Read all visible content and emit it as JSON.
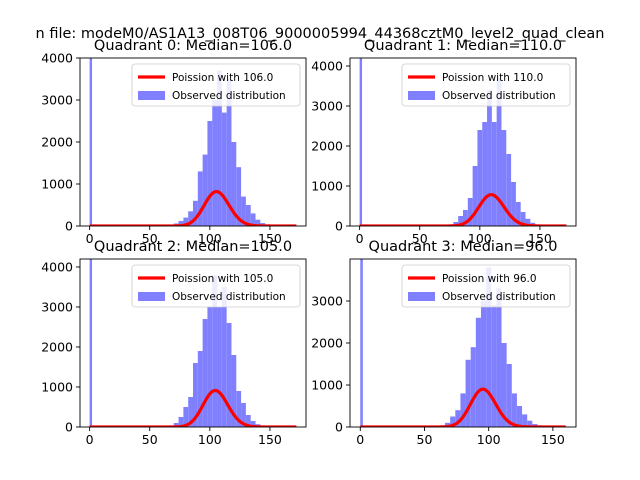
{
  "figure": {
    "suptitle": "n file: modeM0/AS1A13_008T06_9000005994_44368cztM0_level2_quad_clean"
  },
  "colors": {
    "poisson_line": "#ff0000",
    "observed_fill": "#8080ff",
    "axes": "#000000",
    "background": "#ffffff"
  },
  "chart_data": [
    {
      "type": "bar",
      "title": "Quadrant 0: Median=106.0",
      "xlim": [
        -8,
        180
      ],
      "ylim": [
        0,
        4000
      ],
      "xticks": [
        0,
        50,
        100,
        150
      ],
      "yticks": [
        0,
        1000,
        2000,
        3000,
        4000
      ],
      "legend_position": "top-right",
      "series": [
        {
          "name": "Poission with 106.0",
          "kind": "line",
          "lambda": 106.0,
          "x_range": [
            0,
            172
          ]
        },
        {
          "name": "Observed distribution",
          "kind": "histogram",
          "bin_width": 4,
          "bins": [
            {
              "x0": 0,
              "x1": 2,
              "count": 4000
            },
            {
              "x0": 70,
              "x1": 74,
              "count": 60
            },
            {
              "x0": 74,
              "x1": 78,
              "count": 120
            },
            {
              "x0": 78,
              "x1": 82,
              "count": 200
            },
            {
              "x0": 82,
              "x1": 86,
              "count": 350
            },
            {
              "x0": 86,
              "x1": 90,
              "count": 600
            },
            {
              "x0": 90,
              "x1": 94,
              "count": 1300
            },
            {
              "x0": 94,
              "x1": 98,
              "count": 1700
            },
            {
              "x0": 98,
              "x1": 102,
              "count": 2500
            },
            {
              "x0": 102,
              "x1": 106,
              "count": 3000
            },
            {
              "x0": 106,
              "x1": 110,
              "count": 3700
            },
            {
              "x0": 110,
              "x1": 114,
              "count": 2700
            },
            {
              "x0": 114,
              "x1": 118,
              "count": 3500
            },
            {
              "x0": 118,
              "x1": 122,
              "count": 2000
            },
            {
              "x0": 122,
              "x1": 126,
              "count": 1400
            },
            {
              "x0": 126,
              "x1": 130,
              "count": 700
            },
            {
              "x0": 130,
              "x1": 134,
              "count": 500
            },
            {
              "x0": 134,
              "x1": 138,
              "count": 300
            },
            {
              "x0": 138,
              "x1": 142,
              "count": 150
            },
            {
              "x0": 142,
              "x1": 146,
              "count": 70
            },
            {
              "x0": 146,
              "x1": 150,
              "count": 40
            }
          ]
        }
      ]
    },
    {
      "type": "bar",
      "title": "Quadrant 1: Median=110.0",
      "xlim": [
        -8,
        180
      ],
      "ylim": [
        0,
        4200
      ],
      "xticks": [
        0,
        50,
        100,
        150
      ],
      "yticks": [
        0,
        1000,
        2000,
        3000,
        4000
      ],
      "legend_position": "top-right",
      "series": [
        {
          "name": "Poission with 110.0",
          "kind": "line",
          "lambda": 110.0,
          "x_range": [
            0,
            172
          ]
        },
        {
          "name": "Observed distribution",
          "kind": "histogram",
          "bin_width": 4,
          "bins": [
            {
              "x0": 0,
              "x1": 2,
              "count": 4200
            },
            {
              "x0": 74,
              "x1": 78,
              "count": 40
            },
            {
              "x0": 78,
              "x1": 82,
              "count": 100
            },
            {
              "x0": 82,
              "x1": 86,
              "count": 250
            },
            {
              "x0": 86,
              "x1": 90,
              "count": 400
            },
            {
              "x0": 90,
              "x1": 94,
              "count": 700
            },
            {
              "x0": 94,
              "x1": 98,
              "count": 1500
            },
            {
              "x0": 98,
              "x1": 102,
              "count": 2400
            },
            {
              "x0": 102,
              "x1": 106,
              "count": 2600
            },
            {
              "x0": 106,
              "x1": 110,
              "count": 3400
            },
            {
              "x0": 110,
              "x1": 114,
              "count": 2600
            },
            {
              "x0": 114,
              "x1": 118,
              "count": 3700
            },
            {
              "x0": 118,
              "x1": 122,
              "count": 2400
            },
            {
              "x0": 122,
              "x1": 126,
              "count": 1800
            },
            {
              "x0": 126,
              "x1": 130,
              "count": 1100
            },
            {
              "x0": 130,
              "x1": 134,
              "count": 600
            },
            {
              "x0": 134,
              "x1": 138,
              "count": 350
            },
            {
              "x0": 138,
              "x1": 142,
              "count": 180
            },
            {
              "x0": 142,
              "x1": 146,
              "count": 80
            },
            {
              "x0": 146,
              "x1": 150,
              "count": 40
            }
          ]
        }
      ]
    },
    {
      "type": "bar",
      "title": "Quadrant 2: Median=105.0",
      "xlim": [
        -8,
        180
      ],
      "ylim": [
        0,
        4200
      ],
      "xticks": [
        0,
        50,
        100,
        150
      ],
      "yticks": [
        0,
        1000,
        2000,
        3000,
        4000
      ],
      "legend_position": "top-right",
      "series": [
        {
          "name": "Poission with 105.0",
          "kind": "line",
          "lambda": 105.0,
          "x_range": [
            0,
            172
          ]
        },
        {
          "name": "Observed distribution",
          "kind": "histogram",
          "bin_width": 4,
          "bins": [
            {
              "x0": 0,
              "x1": 2,
              "count": 4200
            },
            {
              "x0": 66,
              "x1": 70,
              "count": 40
            },
            {
              "x0": 70,
              "x1": 74,
              "count": 100
            },
            {
              "x0": 74,
              "x1": 78,
              "count": 250
            },
            {
              "x0": 78,
              "x1": 82,
              "count": 500
            },
            {
              "x0": 82,
              "x1": 86,
              "count": 750
            },
            {
              "x0": 86,
              "x1": 90,
              "count": 1600
            },
            {
              "x0": 90,
              "x1": 94,
              "count": 1900
            },
            {
              "x0": 94,
              "x1": 98,
              "count": 2700
            },
            {
              "x0": 98,
              "x1": 102,
              "count": 3000
            },
            {
              "x0": 102,
              "x1": 106,
              "count": 3800
            },
            {
              "x0": 106,
              "x1": 110,
              "count": 3000
            },
            {
              "x0": 110,
              "x1": 114,
              "count": 3500
            },
            {
              "x0": 114,
              "x1": 118,
              "count": 2600
            },
            {
              "x0": 118,
              "x1": 122,
              "count": 1800
            },
            {
              "x0": 122,
              "x1": 126,
              "count": 900
            },
            {
              "x0": 126,
              "x1": 130,
              "count": 600
            },
            {
              "x0": 130,
              "x1": 134,
              "count": 300
            },
            {
              "x0": 134,
              "x1": 138,
              "count": 150
            },
            {
              "x0": 138,
              "x1": 142,
              "count": 70
            },
            {
              "x0": 142,
              "x1": 146,
              "count": 40
            }
          ]
        }
      ]
    },
    {
      "type": "bar",
      "title": "Quadrant 3: Median=96.0",
      "xlim": [
        -8,
        168
      ],
      "ylim": [
        0,
        4000
      ],
      "xticks": [
        0,
        50,
        100,
        150
      ],
      "yticks": [
        0,
        1000,
        2000,
        3000
      ],
      "legend_position": "top-right",
      "series": [
        {
          "name": "Poission with 96.0",
          "kind": "line",
          "lambda": 96.0,
          "x_range": [
            0,
            160
          ]
        },
        {
          "name": "Observed distribution",
          "kind": "histogram",
          "bin_width": 4,
          "bins": [
            {
              "x0": 0,
              "x1": 2,
              "count": 4000
            },
            {
              "x0": 62,
              "x1": 66,
              "count": 40
            },
            {
              "x0": 66,
              "x1": 70,
              "count": 100
            },
            {
              "x0": 70,
              "x1": 74,
              "count": 250
            },
            {
              "x0": 74,
              "x1": 78,
              "count": 400
            },
            {
              "x0": 78,
              "x1": 82,
              "count": 800
            },
            {
              "x0": 82,
              "x1": 86,
              "count": 1600
            },
            {
              "x0": 86,
              "x1": 90,
              "count": 1900
            },
            {
              "x0": 90,
              "x1": 94,
              "count": 2600
            },
            {
              "x0": 94,
              "x1": 98,
              "count": 3000
            },
            {
              "x0": 98,
              "x1": 102,
              "count": 3800
            },
            {
              "x0": 102,
              "x1": 106,
              "count": 2900
            },
            {
              "x0": 106,
              "x1": 110,
              "count": 3300
            },
            {
              "x0": 110,
              "x1": 114,
              "count": 2000
            },
            {
              "x0": 114,
              "x1": 118,
              "count": 1500
            },
            {
              "x0": 118,
              "x1": 122,
              "count": 800
            },
            {
              "x0": 122,
              "x1": 126,
              "count": 500
            },
            {
              "x0": 126,
              "x1": 130,
              "count": 300
            },
            {
              "x0": 130,
              "x1": 134,
              "count": 150
            },
            {
              "x0": 134,
              "x1": 138,
              "count": 70
            },
            {
              "x0": 138,
              "x1": 142,
              "count": 40
            }
          ]
        }
      ]
    }
  ]
}
